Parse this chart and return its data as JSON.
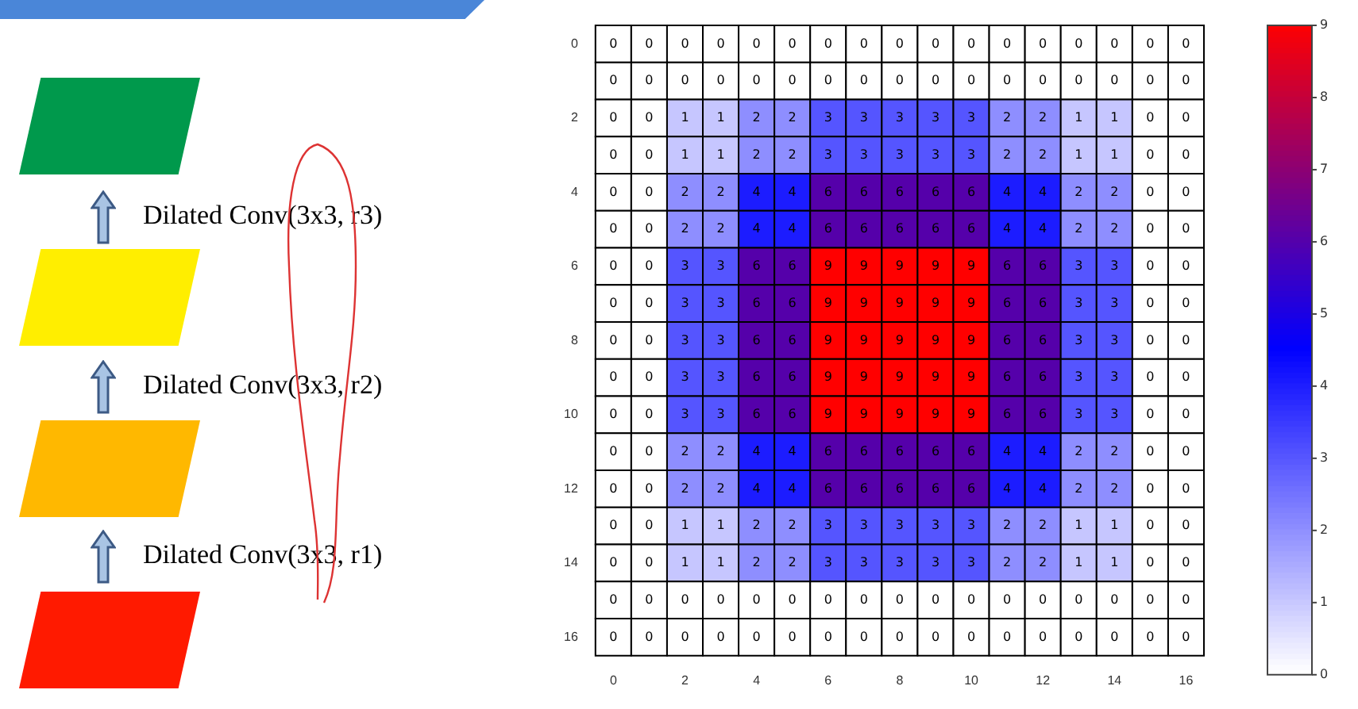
{
  "chart_data": {
    "type": "heatmap",
    "categories": [
      "0",
      null,
      "2",
      null,
      "4",
      null,
      "6",
      null,
      "8",
      null,
      "10",
      null,
      "12",
      null,
      "14",
      null,
      "16"
    ],
    "y_categories": [
      "0",
      null,
      "2",
      null,
      "4",
      null,
      "6",
      null,
      "8",
      null,
      "10",
      null,
      "12",
      null,
      "14",
      null,
      "16"
    ],
    "cells": [
      [
        0,
        0,
        0,
        0,
        0,
        0,
        0,
        0,
        0,
        0,
        0,
        0,
        0,
        0,
        0,
        0,
        0
      ],
      [
        0,
        0,
        0,
        0,
        0,
        0,
        0,
        0,
        0,
        0,
        0,
        0,
        0,
        0,
        0,
        0,
        0
      ],
      [
        0,
        0,
        1,
        1,
        2,
        2,
        3,
        3,
        3,
        3,
        3,
        2,
        2,
        1,
        1,
        0,
        0
      ],
      [
        0,
        0,
        1,
        1,
        2,
        2,
        3,
        3,
        3,
        3,
        3,
        2,
        2,
        1,
        1,
        0,
        0
      ],
      [
        0,
        0,
        2,
        2,
        4,
        4,
        6,
        6,
        6,
        6,
        6,
        4,
        4,
        2,
        2,
        0,
        0
      ],
      [
        0,
        0,
        2,
        2,
        4,
        4,
        6,
        6,
        6,
        6,
        6,
        4,
        4,
        2,
        2,
        0,
        0
      ],
      [
        0,
        0,
        3,
        3,
        6,
        6,
        9,
        9,
        9,
        9,
        9,
        6,
        6,
        3,
        3,
        0,
        0
      ],
      [
        0,
        0,
        3,
        3,
        6,
        6,
        9,
        9,
        9,
        9,
        9,
        6,
        6,
        3,
        3,
        0,
        0
      ],
      [
        0,
        0,
        3,
        3,
        6,
        6,
        9,
        9,
        9,
        9,
        9,
        6,
        6,
        3,
        3,
        0,
        0
      ],
      [
        0,
        0,
        3,
        3,
        6,
        6,
        9,
        9,
        9,
        9,
        9,
        6,
        6,
        3,
        3,
        0,
        0
      ],
      [
        0,
        0,
        3,
        3,
        6,
        6,
        9,
        9,
        9,
        9,
        9,
        6,
        6,
        3,
        3,
        0,
        0
      ],
      [
        0,
        0,
        2,
        2,
        4,
        4,
        6,
        6,
        6,
        6,
        6,
        4,
        4,
        2,
        2,
        0,
        0
      ],
      [
        0,
        0,
        2,
        2,
        4,
        4,
        6,
        6,
        6,
        6,
        6,
        4,
        4,
        2,
        2,
        0,
        0
      ],
      [
        0,
        0,
        1,
        1,
        2,
        2,
        3,
        3,
        3,
        3,
        3,
        2,
        2,
        1,
        1,
        0,
        0
      ],
      [
        0,
        0,
        1,
        1,
        2,
        2,
        3,
        3,
        3,
        3,
        3,
        2,
        2,
        1,
        1,
        0,
        0
      ],
      [
        0,
        0,
        0,
        0,
        0,
        0,
        0,
        0,
        0,
        0,
        0,
        0,
        0,
        0,
        0,
        0,
        0
      ],
      [
        0,
        0,
        0,
        0,
        0,
        0,
        0,
        0,
        0,
        0,
        0,
        0,
        0,
        0,
        0,
        0,
        0
      ]
    ],
    "data_labels": true,
    "clim": [
      0,
      9
    ],
    "cticks": [
      0,
      1,
      2,
      3,
      4,
      5,
      6,
      7,
      8,
      9
    ],
    "annotations": [
      "Dilated Conv(3x3, r3)",
      "Dilated Conv(3x3, r2)",
      "Dilated Conv(3x3, r1)"
    ]
  }
}
